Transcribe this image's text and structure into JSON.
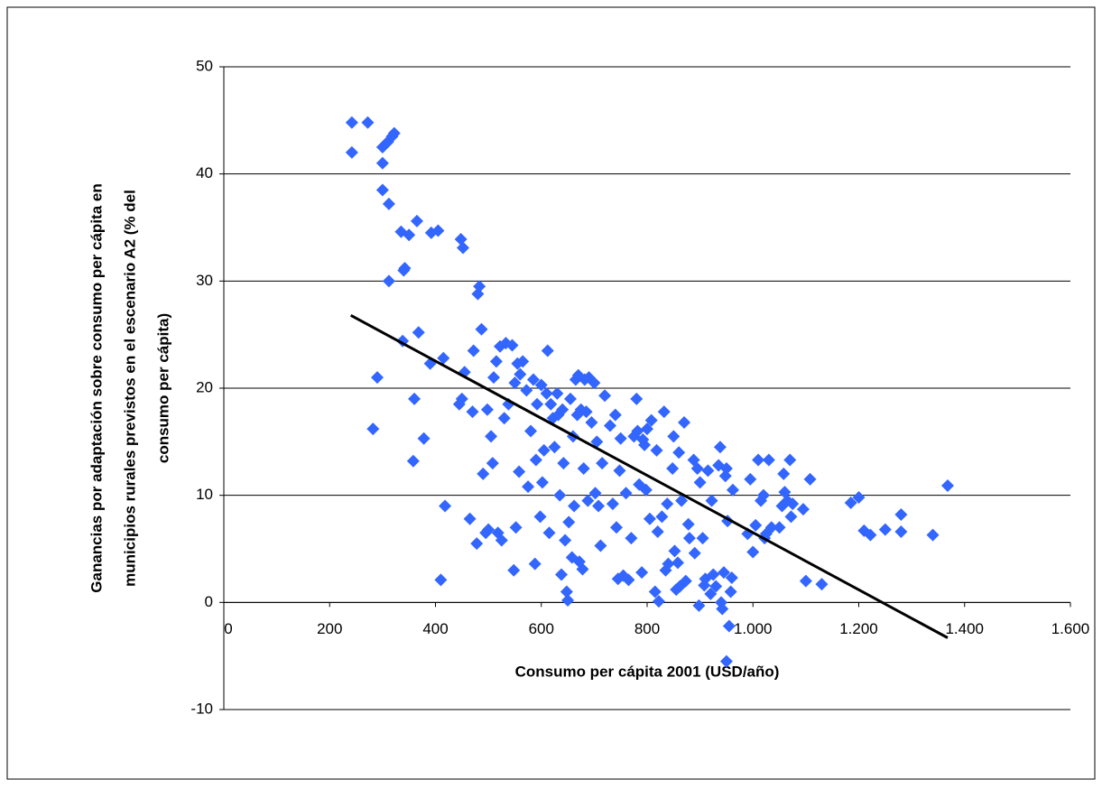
{
  "chart_data": {
    "type": "scatter",
    "xlabel": "Consumo per cápita 2001 (USD/año)",
    "ylabel": [
      "Ganancias por adaptación sobre consumo per cápita en",
      "municipios rurales previstos en el escenario A2 (% del",
      "consumo per cápita)"
    ],
    "xlim": [
      0,
      1600
    ],
    "ylim": [
      -10,
      50
    ],
    "xticks": [
      0,
      200,
      400,
      600,
      800,
      {
        "value": 1000,
        "label": "1.000"
      },
      {
        "value": 1200,
        "label": "1.200"
      },
      {
        "value": 1400,
        "label": "1.400"
      },
      {
        "value": 1600,
        "label": "1.600"
      }
    ],
    "yticks": [
      -10,
      0,
      10,
      20,
      30,
      40,
      50
    ],
    "grid": true,
    "series": [
      {
        "color": "#3366ff",
        "x": [
          242,
          242,
          272,
          300,
          310,
          318,
          322,
          300,
          300,
          312,
          312,
          282,
          290,
          335,
          350,
          340,
          342,
          338,
          365,
          392,
          405,
          360,
          358,
          368,
          378,
          390,
          410,
          415,
          418,
          448,
          452,
          445,
          450,
          455,
          465,
          470,
          472,
          478,
          480,
          483,
          487,
          490,
          495,
          498,
          500,
          505,
          508,
          510,
          515,
          518,
          522,
          525,
          530,
          533,
          538,
          545,
          550,
          548,
          552,
          555,
          558,
          560,
          565,
          572,
          575,
          580,
          585,
          588,
          590,
          592,
          598,
          600,
          602,
          605,
          610,
          612,
          615,
          618,
          622,
          625,
          630,
          632,
          635,
          638,
          640,
          642,
          645,
          648,
          650,
          652,
          655,
          658,
          660,
          662,
          665,
          668,
          670,
          672,
          675,
          678,
          680,
          682,
          685,
          688,
          690,
          695,
          700,
          702,
          705,
          708,
          712,
          715,
          720,
          730,
          735,
          740,
          742,
          745,
          748,
          750,
          755,
          760,
          765,
          770,
          775,
          780,
          782,
          785,
          790,
          792,
          795,
          798,
          800,
          805,
          808,
          815,
          818,
          820,
          822,
          828,
          832,
          835,
          838,
          840,
          848,
          850,
          852,
          855,
          858,
          860,
          862,
          865,
          870,
          873,
          878,
          880,
          888,
          890,
          895,
          898,
          900,
          905,
          908,
          910,
          915,
          920,
          922,
          925,
          930,
          935,
          938,
          940,
          942,
          945,
          948,
          950,
          952,
          955,
          958,
          960,
          962,
          950,
          990,
          995,
          1000,
          1005,
          1010,
          1015,
          1020,
          1022,
          1025,
          1030,
          1035,
          1050,
          1055,
          1058,
          1060,
          1065,
          1070,
          1072,
          1075,
          1095,
          1100,
          1108,
          1130,
          1185,
          1200,
          1210,
          1222,
          1250,
          1280,
          1280,
          1340,
          1368
        ],
        "y": [
          42,
          44.8,
          44.8,
          42.5,
          43,
          43.5,
          43.8,
          41,
          38.5,
          37.2,
          30,
          16.2,
          21,
          34.6,
          34.3,
          31,
          31.2,
          24.4,
          35.6,
          34.5,
          34.7,
          19,
          13.2,
          25.2,
          15.3,
          22.3,
          2.1,
          22.8,
          9,
          33.9,
          33.1,
          18.5,
          19,
          21.5,
          7.8,
          17.8,
          23.5,
          5.5,
          28.8,
          29.5,
          25.5,
          12,
          6.5,
          18,
          6.8,
          15.5,
          13,
          21,
          22.5,
          6.5,
          23.9,
          5.8,
          17.2,
          24.2,
          18.5,
          24,
          20.5,
          3,
          7,
          22.3,
          12.2,
          21.3,
          22.5,
          19.8,
          10.8,
          16,
          20.8,
          3.6,
          13.3,
          18.5,
          8,
          20.3,
          11.2,
          14.2,
          19.5,
          23.5,
          6.5,
          18.5,
          17.2,
          14.5,
          19.5,
          17.5,
          10,
          2.6,
          18,
          13,
          5.8,
          1,
          0.2,
          7.5,
          19,
          4.2,
          15.5,
          9,
          20.8,
          17.5,
          21.2,
          3.8,
          18,
          3.1,
          12.5,
          20.8,
          17.8,
          9.5,
          21,
          16.8,
          20.5,
          10.2,
          15,
          9,
          5.3,
          13,
          19.3,
          16.5,
          9.2,
          17.5,
          7,
          2.2,
          12.3,
          15.3,
          2.5,
          10.2,
          2.1,
          6,
          15.5,
          19,
          16,
          11,
          2.8,
          15.2,
          14.7,
          10.5,
          16.2,
          7.8,
          17,
          1,
          14.2,
          6.6,
          0.1,
          8,
          17.8,
          3,
          9.2,
          3.6,
          12.5,
          15.5,
          4.8,
          1.2,
          3.7,
          14,
          1.5,
          9.5,
          16.8,
          2,
          7.3,
          6,
          13.3,
          4.6,
          12.5,
          -0.3,
          11.2,
          6,
          1.6,
          2.2,
          12.3,
          0.8,
          9.5,
          2.6,
          1.5,
          12.8,
          14.5,
          0,
          -0.6,
          2.8,
          11.8,
          12.5,
          7.6,
          -2.2,
          1,
          2.3,
          10.5,
          -5.5,
          6.4,
          11.5,
          4.7,
          7.2,
          13.3,
          9.5,
          10,
          6,
          6.4,
          13.3,
          7,
          7,
          9,
          12,
          10.3,
          9.5,
          13.3,
          8,
          9.2,
          8.7,
          2,
          11.5,
          1.7,
          9.3,
          9.8,
          6.7,
          6.3,
          6.8,
          8.2,
          6.6,
          6.3,
          10.9
        ]
      }
    ],
    "trendline": {
      "color": "#000000",
      "x": [
        240,
        1368
      ],
      "y": [
        26.8,
        -3.3
      ]
    }
  }
}
